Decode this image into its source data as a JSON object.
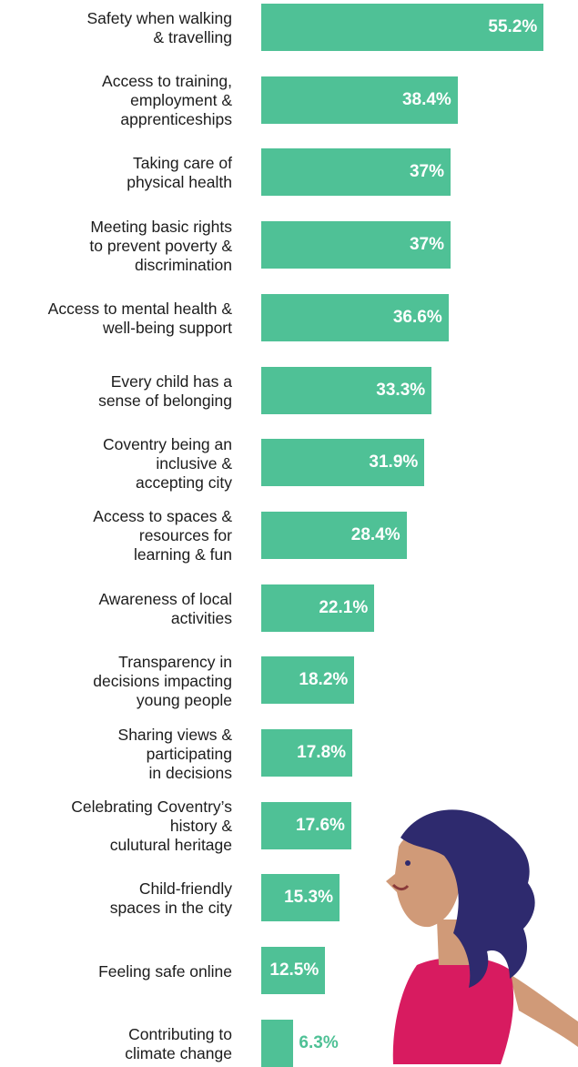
{
  "chart_data": {
    "type": "bar",
    "orientation": "horizontal",
    "categories": [
      "Safety when walking\n& travelling",
      "Access to training,\nemployment &\napprenticeships",
      "Taking care of\nphysical health",
      "Meeting basic rights\nto prevent poverty &\ndiscrimination",
      "Access to mental health &\nwell-being support",
      "Every child has a\nsense of belonging",
      "Coventry being an\ninclusive &\naccepting city",
      "Access to spaces &\nresources for\nlearning & fun",
      "Awareness of local\nactivities",
      "Transparency in\ndecisions impacting\nyoung people",
      "Sharing views &\nparticipating\nin decisions",
      "Celebrating Coventry’s\nhistory &\nculutural heritage",
      "Child-friendly\nspaces in the city",
      "Feeling safe online",
      "Contributing to\nclimate change"
    ],
    "values": [
      55.2,
      38.4,
      37,
      37,
      36.6,
      33.3,
      31.9,
      28.4,
      22.1,
      18.2,
      17.8,
      17.6,
      15.3,
      12.5,
      6.3
    ],
    "value_labels": [
      "55.2%",
      "38.4%",
      "37%",
      "37%",
      "36.6%",
      "33.3%",
      "31.9%",
      "28.4%",
      "22.1%",
      "18.2%",
      "17.8%",
      "17.6%",
      "15.3%",
      "12.5%",
      "6.3%"
    ],
    "xlim": [
      0,
      59.6
    ],
    "bar_color": "#4fc196",
    "label_color": "#ffffff",
    "grid": false,
    "legend": "none"
  },
  "illustration": {
    "icon": "girl-running-illustration",
    "colors": {
      "hair": "#2e2a6e",
      "skin": "#d09a78",
      "top": "#d81b60"
    }
  }
}
